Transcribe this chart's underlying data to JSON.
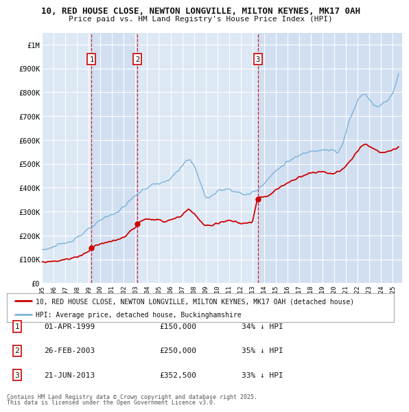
{
  "title_line1": "10, RED HOUSE CLOSE, NEWTON LONGVILLE, MILTON KEYNES, MK17 0AH",
  "title_line2": "Price paid vs. HM Land Registry's House Price Index (HPI)",
  "background_color": "#ffffff",
  "plot_bg_color": "#dde8f5",
  "grid_color": "#ffffff",
  "hpi_color": "#7ab3d8",
  "price_color": "#cc0000",
  "shade_color": "#dde8f5",
  "transactions": [
    {
      "num": 1,
      "date_str": "01-APR-1999",
      "year": 1999.25,
      "price": 150000,
      "pct": "34%"
    },
    {
      "num": 2,
      "date_str": "26-FEB-2003",
      "year": 2003.15,
      "price": 250000,
      "pct": "35%"
    },
    {
      "num": 3,
      "date_str": "21-JUN-2013",
      "year": 2013.47,
      "price": 352500,
      "pct": "33%"
    }
  ],
  "legend_line1": "10, RED HOUSE CLOSE, NEWTON LONGVILLE, MILTON KEYNES, MK17 0AH (detached house)",
  "legend_line2": "HPI: Average price, detached house, Buckinghamshire",
  "footer_line1": "Contains HM Land Registry data © Crown copyright and database right 2025.",
  "footer_line2": "This data is licensed under the Open Government Licence v3.0.",
  "ylim": [
    0,
    1050000
  ],
  "yticks": [
    0,
    100000,
    200000,
    300000,
    400000,
    500000,
    600000,
    700000,
    800000,
    900000,
    1000000
  ],
  "ytick_labels": [
    "£0",
    "£100K",
    "£200K",
    "£300K",
    "£400K",
    "£500K",
    "£600K",
    "£700K",
    "£800K",
    "£900K",
    "£1M"
  ],
  "xmin": 1995.0,
  "xmax": 2025.8,
  "xtick_years": [
    1995,
    1996,
    1997,
    1998,
    1999,
    2000,
    2001,
    2002,
    2003,
    2004,
    2005,
    2006,
    2007,
    2008,
    2009,
    2010,
    2011,
    2012,
    2013,
    2014,
    2015,
    2016,
    2017,
    2018,
    2019,
    2020,
    2021,
    2022,
    2023,
    2024,
    2025
  ]
}
